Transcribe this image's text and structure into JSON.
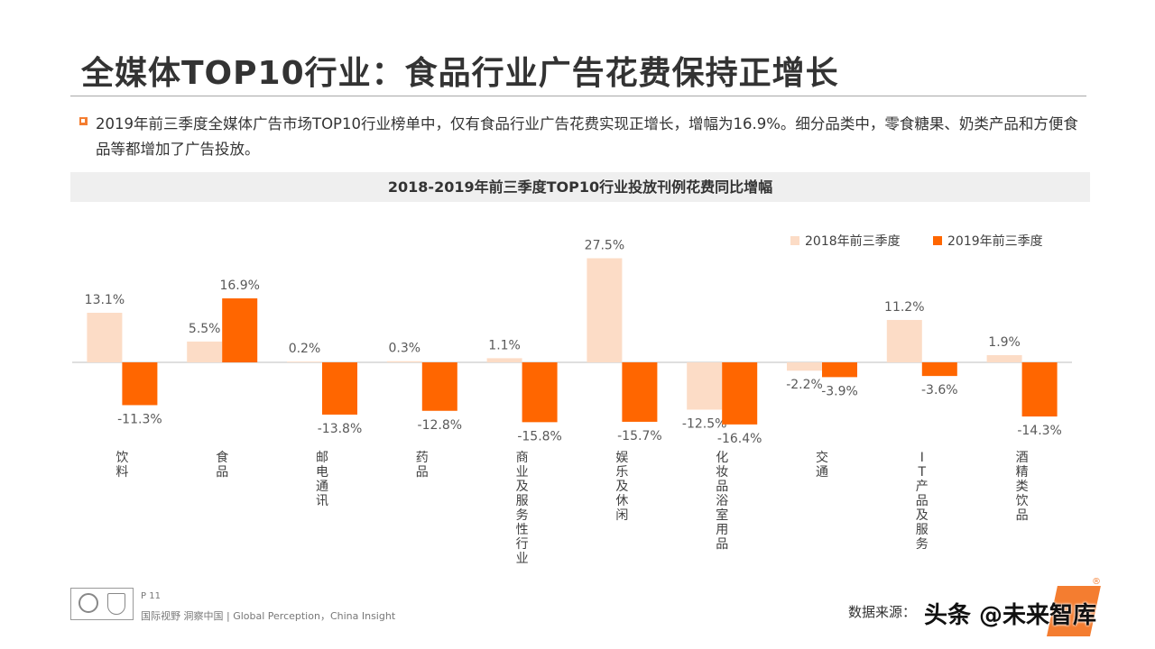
{
  "header": {
    "title": "全媒体TOP10行业：食品行业广告花费保持正增长"
  },
  "summary": {
    "text": "2019年前三季度全媒体广告市场TOP10行业榜单中，仅有食品行业广告花费实现正增长，增幅为16.9%。细分品类中，零食糖果、奶类产品和方便食品等都增加了广告投放。"
  },
  "chart_data": {
    "type": "bar",
    "title": "2018-2019年前三季度TOP10行业投放刊例花费同比增幅",
    "categories": [
      "饮料",
      "食品",
      "邮电通讯",
      "药品",
      "商业及服务性行业",
      "娱乐及休闲",
      "化妆品浴室用品",
      "交通",
      "IT产品及服务",
      "酒精类饮品"
    ],
    "series": [
      {
        "name": "2018年前三季度",
        "color": "#fcdcc6",
        "values": [
          13.1,
          5.5,
          0.2,
          0.3,
          1.1,
          27.5,
          -12.5,
          -2.2,
          11.2,
          1.9
        ],
        "labels": [
          "13.1%",
          "5.5%",
          "0.2%",
          "0.3%",
          "1.1%",
          "27.5%",
          "-12.5%",
          "-2.2%",
          "11.2%",
          "1.9%"
        ]
      },
      {
        "name": "2019年前三季度",
        "color": "#ff6600",
        "values": [
          -11.3,
          16.9,
          -13.8,
          -12.8,
          -15.8,
          -15.7,
          -16.4,
          -3.9,
          -3.6,
          -14.3
        ],
        "labels": [
          "-11.3%",
          "16.9%",
          "-13.8%",
          "-12.8%",
          "-15.8%",
          "-15.7%",
          "-16.4%",
          "-3.9%",
          "-3.6%",
          "-14.3%"
        ]
      }
    ],
    "legend_position": "top-right",
    "grid": false,
    "axis_color": "#bfbfbf",
    "label_color": "#595959"
  },
  "footer": {
    "page": "P 11",
    "slogan": "国际视野  洞察中国 |  Global Perception，China Insight",
    "source": "数据来源：",
    "watermark": "头条 @未来智库",
    "reg_mark": "®"
  }
}
